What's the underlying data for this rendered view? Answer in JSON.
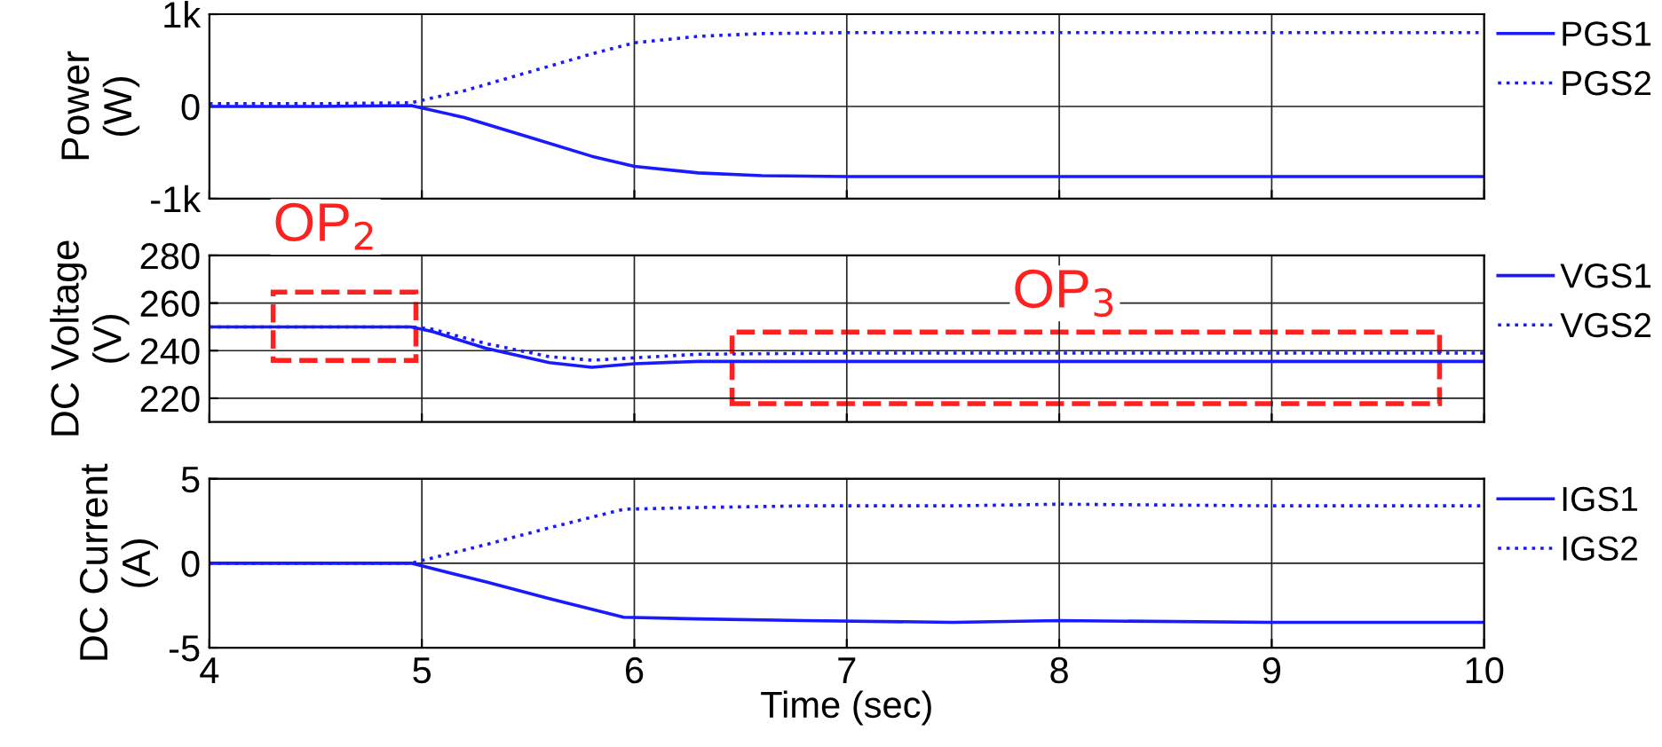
{
  "chart_data": [
    {
      "type": "line",
      "ylabel": "Power\n(W)",
      "xlim": [
        4,
        10
      ],
      "xticks": [
        4,
        5,
        6,
        7,
        8,
        9,
        10
      ],
      "ylim": [
        -1000,
        1000
      ],
      "yticks": [
        {
          "value": -1000,
          "label": "-1k"
        },
        0,
        {
          "value": 1000,
          "label": "1k"
        }
      ],
      "grid": true,
      "legend": "right",
      "tick_labels": "y",
      "series": [
        {
          "name": "PGS1",
          "color": "#1a1aff",
          "line_style": "solid",
          "x": [
            4,
            4.5,
            4.95,
            5.2,
            5.5,
            5.8,
            6.0,
            6.3,
            6.6,
            7,
            8,
            9,
            10
          ],
          "values": [
            0,
            0,
            10,
            -120,
            -330,
            -540,
            -650,
            -720,
            -750,
            -760,
            -760,
            -760,
            -760
          ]
        },
        {
          "name": "PGS2",
          "color": "#1a1aff",
          "line_style": "dotted",
          "x": [
            4,
            4.5,
            4.95,
            5.2,
            5.5,
            5.8,
            6.0,
            6.3,
            6.6,
            7,
            8,
            9,
            10
          ],
          "values": [
            30,
            30,
            40,
            170,
            370,
            570,
            690,
            760,
            790,
            800,
            800,
            800,
            800
          ]
        }
      ]
    },
    {
      "type": "line",
      "ylabel": "DC Voltage\n(V)",
      "xlim": [
        4,
        10
      ],
      "xticks": [
        4,
        5,
        6,
        7,
        8,
        9,
        10
      ],
      "ylim": [
        210,
        280
      ],
      "yticks": [
        220,
        240,
        260,
        280
      ],
      "grid": true,
      "legend": "right",
      "tick_labels": "y",
      "annotations": [
        "OP$_{2}$",
        "OP$_{3}$"
      ],
      "series": [
        {
          "name": "VGS1",
          "color": "#1a1aff",
          "line_style": "solid",
          "x": [
            4,
            4.5,
            4.95,
            5.05,
            5.3,
            5.6,
            5.8,
            6.0,
            6.3,
            7,
            8,
            9,
            10
          ],
          "values": [
            250,
            250,
            250,
            248,
            241,
            235,
            233,
            234.5,
            235.5,
            235.5,
            235.5,
            235.5,
            235.5
          ]
        },
        {
          "name": "VGS2",
          "color": "#1a1aff",
          "line_style": "dotted",
          "x": [
            4,
            4.5,
            4.95,
            5.05,
            5.3,
            5.6,
            5.8,
            6.0,
            6.3,
            7,
            8,
            9,
            10
          ],
          "values": [
            250,
            250,
            250,
            249,
            243,
            237.5,
            236,
            237,
            238.5,
            239,
            239,
            239,
            239
          ]
        }
      ]
    },
    {
      "type": "line",
      "xlabel": "Time (sec)",
      "ylabel": "DC Current\n(A)",
      "xlim": [
        4,
        10
      ],
      "xticks": [
        4,
        5,
        6,
        7,
        8,
        9,
        10
      ],
      "ylim": [
        -5,
        5
      ],
      "yticks": [
        -5,
        0,
        5
      ],
      "grid": true,
      "legend": "right",
      "series": [
        {
          "name": "IGS1",
          "color": "#1a1aff",
          "line_style": "solid",
          "x": [
            4,
            4.5,
            4.95,
            5.3,
            5.6,
            5.95,
            6.3,
            6.8,
            7.5,
            8,
            9,
            10
          ],
          "values": [
            0,
            0,
            0,
            -1.1,
            -2.1,
            -3.2,
            -3.3,
            -3.4,
            -3.5,
            -3.4,
            -3.5,
            -3.5
          ]
        },
        {
          "name": "IGS2",
          "color": "#1a1aff",
          "line_style": "dotted",
          "x": [
            4,
            4.5,
            4.95,
            5.3,
            5.6,
            5.95,
            6.3,
            6.8,
            7.5,
            8,
            9,
            10
          ],
          "values": [
            0,
            0,
            0,
            1.1,
            2.1,
            3.2,
            3.3,
            3.4,
            3.4,
            3.5,
            3.4,
            3.4
          ]
        }
      ]
    }
  ]
}
